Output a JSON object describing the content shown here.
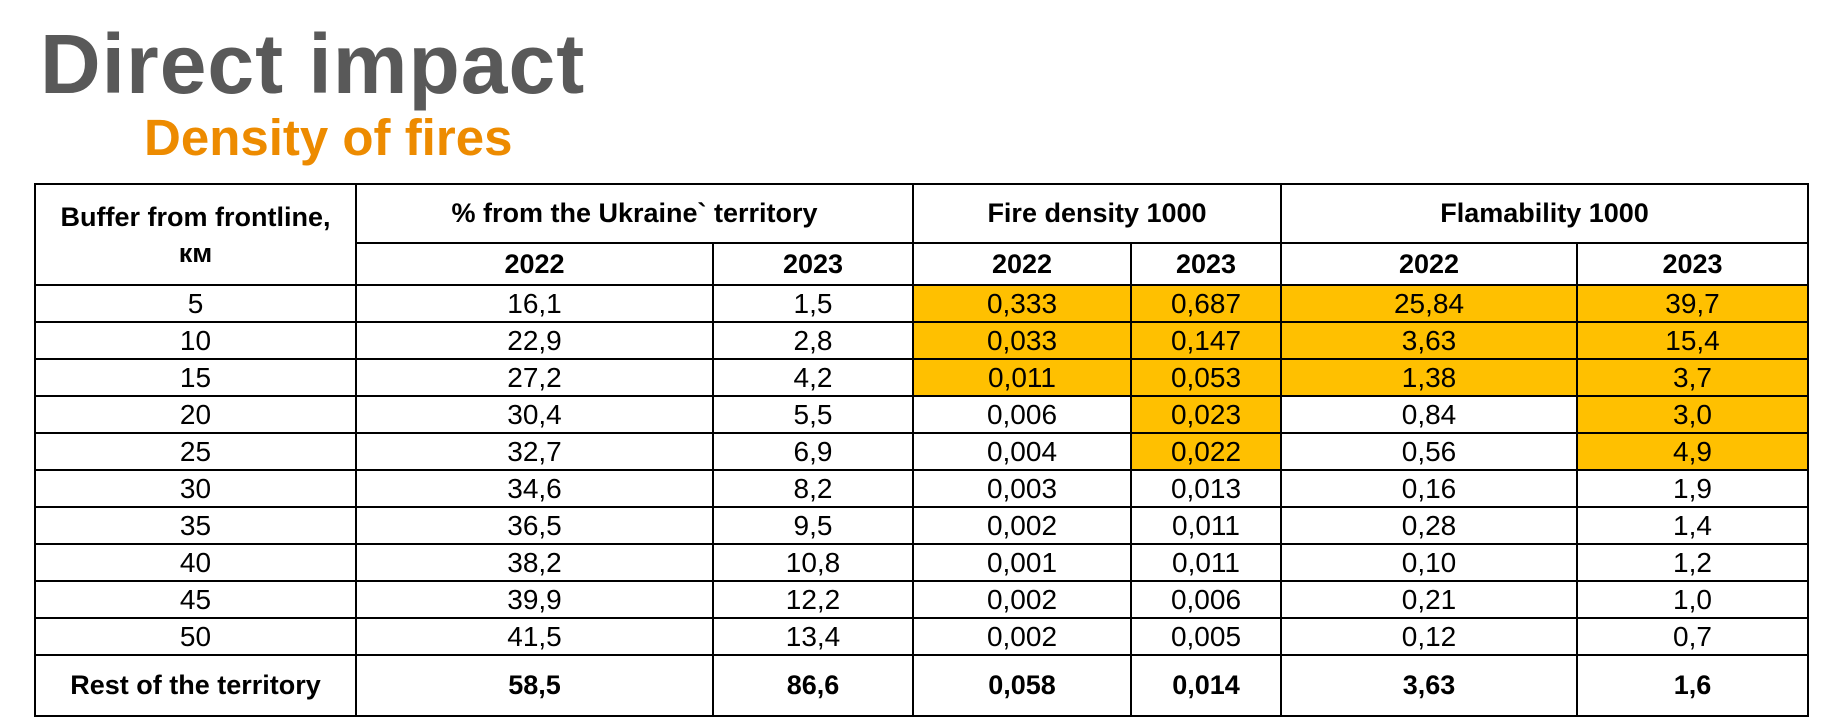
{
  "title": "Direct impact",
  "subtitle": "Density of fires",
  "colors": {
    "title": "#595959",
    "subtitle": "#ED8B00",
    "highlight": "#FFC000",
    "border": "#000000"
  },
  "table": {
    "header": {
      "buffer_line1": "Buffer from frontline,",
      "buffer_line2": "км",
      "territory": "% from  the Ukraine` territory",
      "fire_density": "Fire density 1000",
      "flamability": "Flamability 1000",
      "years": [
        "2022",
        "2023",
        "2022",
        "2023",
        "2022",
        "2023"
      ]
    },
    "rows": [
      {
        "buffer": "5",
        "terr_2022": "16,1",
        "terr_2023": "1,5",
        "fd_2022": "0,333",
        "fd_2023": "0,687",
        "fl_2022": "25,84",
        "fl_2023": "39,7",
        "highlight": [
          true,
          true,
          true,
          true
        ]
      },
      {
        "buffer": "10",
        "terr_2022": "22,9",
        "terr_2023": "2,8",
        "fd_2022": "0,033",
        "fd_2023": "0,147",
        "fl_2022": "3,63",
        "fl_2023": "15,4",
        "highlight": [
          true,
          true,
          true,
          true
        ]
      },
      {
        "buffer": "15",
        "terr_2022": "27,2",
        "terr_2023": "4,2",
        "fd_2022": "0,011",
        "fd_2023": "0,053",
        "fl_2022": "1,38",
        "fl_2023": "3,7",
        "highlight": [
          true,
          true,
          true,
          true
        ]
      },
      {
        "buffer": "20",
        "terr_2022": "30,4",
        "terr_2023": "5,5",
        "fd_2022": "0,006",
        "fd_2023": "0,023",
        "fl_2022": "0,84",
        "fl_2023": "3,0",
        "highlight": [
          false,
          true,
          false,
          true
        ]
      },
      {
        "buffer": "25",
        "terr_2022": "32,7",
        "terr_2023": "6,9",
        "fd_2022": "0,004",
        "fd_2023": "0,022",
        "fl_2022": "0,56",
        "fl_2023": "4,9",
        "highlight": [
          false,
          true,
          false,
          true
        ]
      },
      {
        "buffer": "30",
        "terr_2022": "34,6",
        "terr_2023": "8,2",
        "fd_2022": "0,003",
        "fd_2023": "0,013",
        "fl_2022": "0,16",
        "fl_2023": "1,9",
        "highlight": [
          false,
          false,
          false,
          false
        ]
      },
      {
        "buffer": "35",
        "terr_2022": "36,5",
        "terr_2023": "9,5",
        "fd_2022": "0,002",
        "fd_2023": "0,011",
        "fl_2022": "0,28",
        "fl_2023": "1,4",
        "highlight": [
          false,
          false,
          false,
          false
        ]
      },
      {
        "buffer": "40",
        "terr_2022": "38,2",
        "terr_2023": "10,8",
        "fd_2022": "0,001",
        "fd_2023": "0,011",
        "fl_2022": "0,10",
        "fl_2023": "1,2",
        "highlight": [
          false,
          false,
          false,
          false
        ]
      },
      {
        "buffer": "45",
        "terr_2022": "39,9",
        "terr_2023": "12,2",
        "fd_2022": "0,002",
        "fd_2023": "0,006",
        "fl_2022": "0,21",
        "fl_2023": "1,0",
        "highlight": [
          false,
          false,
          false,
          false
        ]
      },
      {
        "buffer": "50",
        "terr_2022": "41,5",
        "terr_2023": "13,4",
        "fd_2022": "0,002",
        "fd_2023": "0,005",
        "fl_2022": "0,12",
        "fl_2023": "0,7",
        "highlight": [
          false,
          false,
          false,
          false
        ]
      }
    ],
    "rest": {
      "buffer": "Rest of the territory",
      "terr_2022": "58,5",
      "terr_2023": "86,6",
      "fd_2022": "0,058",
      "fd_2023": "0,014",
      "fl_2022": "3,63",
      "fl_2023": "1,6"
    }
  }
}
